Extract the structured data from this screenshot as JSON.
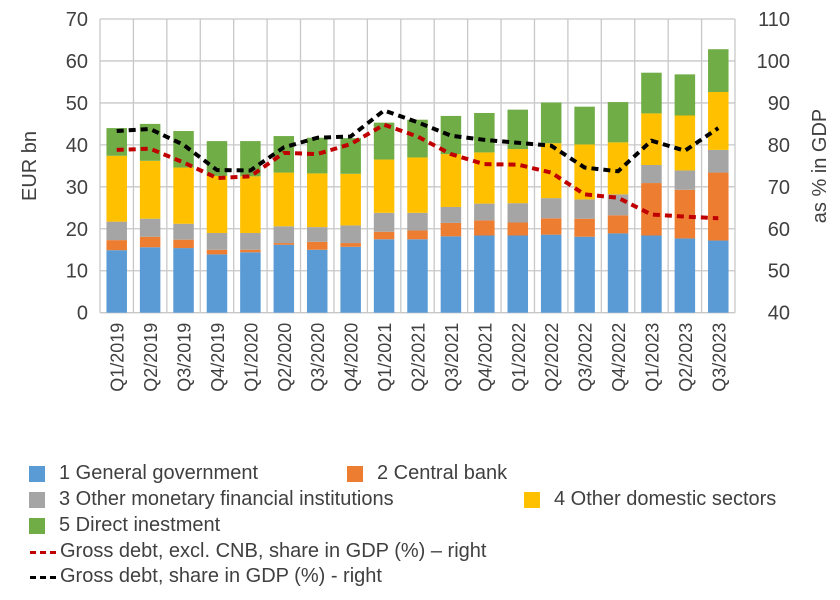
{
  "chart_data": {
    "type": "bar",
    "subtype": "stacked-bar-with-lines",
    "categories": [
      "Q1/2019",
      "Q2/2019",
      "Q3/2019",
      "Q4/2019",
      "Q1/2020",
      "Q2/2020",
      "Q3/2020",
      "Q4/2020",
      "Q1/2021",
      "Q2/2021",
      "Q3/2021",
      "Q4/2021",
      "Q1/2022",
      "Q2/2022",
      "Q3/2022",
      "Q4/2022",
      "Q1/2023",
      "Q2/2023",
      "Q3/2023"
    ],
    "series": [
      {
        "name": "1 General government",
        "axis": "left",
        "kind": "bar",
        "color": "#5b9bd5",
        "values": [
          14.9,
          15.6,
          15.4,
          13.9,
          14.4,
          16.2,
          15.0,
          15.7,
          17.5,
          17.5,
          18.2,
          18.4,
          18.4,
          18.6,
          18.1,
          18.9,
          18.4,
          17.7,
          17.2
        ]
      },
      {
        "name": "2 Central bank",
        "axis": "left",
        "kind": "bar",
        "color": "#ed7d31",
        "values": [
          2.4,
          2.5,
          2.0,
          1.1,
          0.6,
          0.4,
          1.9,
          0.9,
          1.8,
          2.1,
          3.2,
          3.6,
          3.1,
          3.9,
          4.3,
          4.3,
          12.5,
          11.6,
          16.2
        ]
      },
      {
        "name": "3 Other monetary financial institutions",
        "axis": "left",
        "kind": "bar",
        "color": "#a5a5a5",
        "values": [
          4.4,
          4.3,
          3.8,
          4.0,
          4.0,
          4.0,
          3.5,
          4.2,
          4.5,
          4.2,
          3.8,
          4.0,
          4.6,
          4.8,
          4.6,
          5.0,
          4.3,
          4.6,
          5.4
        ]
      },
      {
        "name": "4 Other domestic sectors",
        "axis": "left",
        "kind": "bar",
        "color": "#ffc000",
        "values": [
          15.7,
          13.8,
          13.4,
          13.6,
          13.5,
          12.8,
          12.8,
          12.3,
          12.7,
          13.2,
          12.6,
          12.2,
          12.9,
          13.1,
          13.1,
          12.4,
          12.3,
          13.1,
          13.8
        ]
      },
      {
        "name": "5 Direct inestment",
        "axis": "left",
        "kind": "bar",
        "color": "#70ad47",
        "values": [
          6.6,
          8.8,
          8.7,
          8.3,
          8.4,
          8.7,
          8.5,
          8.5,
          8.8,
          9.0,
          9.1,
          9.4,
          9.4,
          9.7,
          9.0,
          9.6,
          9.7,
          9.8,
          10.2
        ]
      },
      {
        "name": "Gross debt, excl. CNB, share in GDP (%) – right",
        "axis": "right",
        "kind": "line",
        "style": "dashed",
        "color": "#c00000",
        "values": [
          78.8,
          79.1,
          75.8,
          72.1,
          72.5,
          78.1,
          77.8,
          80.2,
          84.8,
          82.0,
          77.8,
          75.4,
          75.3,
          73.4,
          68.2,
          67.4,
          63.4,
          62.9,
          62.5
        ]
      },
      {
        "name": "Gross debt, share in GDP (%) - right",
        "axis": "right",
        "kind": "line",
        "style": "dashed",
        "color": "#000000",
        "values": [
          83.3,
          83.8,
          80.0,
          74.0,
          73.9,
          79.4,
          81.7,
          82.0,
          88.2,
          85.4,
          82.2,
          81.2,
          80.5,
          79.8,
          74.6,
          73.7,
          81.0,
          78.6,
          84.0
        ]
      }
    ],
    "title": "",
    "xlabel": "",
    "ylabel": "EUR bn",
    "y2label": "as % in GDP",
    "ylim": [
      0,
      70
    ],
    "y2lim": [
      40,
      110
    ],
    "yticks": [
      0,
      10,
      20,
      30,
      40,
      50,
      60,
      70
    ],
    "y2ticks": [
      40,
      50,
      60,
      70,
      80,
      90,
      100,
      110
    ],
    "grid": true,
    "legend_position": "bottom"
  },
  "legend": {
    "items": [
      {
        "label": "1 General government",
        "type": "box",
        "color": "#5b9bd5"
      },
      {
        "label": "2 Central bank",
        "type": "box",
        "color": "#ed7d31"
      },
      {
        "label": "3 Other monetary financial institutions",
        "type": "box",
        "color": "#a5a5a5"
      },
      {
        "label": "4 Other domestic sectors",
        "type": "box",
        "color": "#ffc000"
      },
      {
        "label": "5 Direct inestment",
        "type": "box",
        "color": "#70ad47"
      },
      {
        "label": "Gross debt, excl. CNB, share in GDP (%) – right",
        "type": "dash",
        "color": "#c00000"
      },
      {
        "label": "Gross debt, share in GDP (%) - right",
        "type": "dash",
        "color": "#000000"
      }
    ]
  }
}
